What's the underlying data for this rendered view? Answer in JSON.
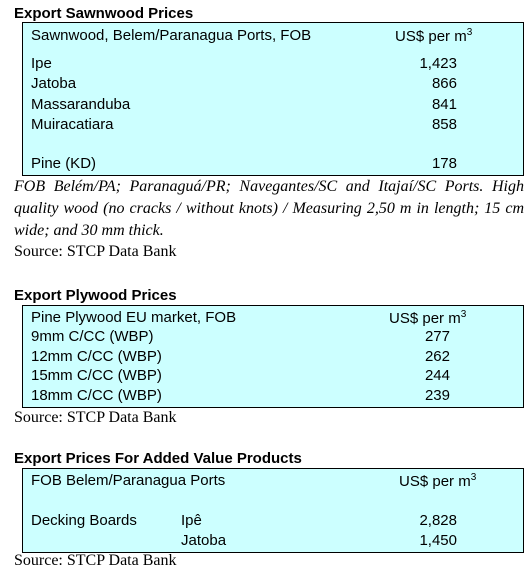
{
  "sawnwood": {
    "title": "Export Sawnwood Prices",
    "header": "Sawnwood, Belem/Paranagua Ports, FOB",
    "unit": "US$ per m",
    "unit_sup": "3",
    "rows": [
      [
        "Ipe",
        "1,423"
      ],
      [
        "Jatoba",
        "866"
      ],
      [
        "Massaranduba",
        "841"
      ],
      [
        "Muiracatiara",
        "858"
      ],
      [
        "Pine (KD)",
        "178"
      ]
    ],
    "note": "FOB Belém/PA; Paranaguá/PR; Navegantes/SC and Itajaí/SC Ports. High quality wood (no cracks / without knots) / Measuring 2,50 m in length; 15 cm wide; and 30 mm thick.",
    "source": "Source: STCP Data Bank"
  },
  "plywood": {
    "title": "Export Plywood Prices",
    "header": "Pine Plywood EU market, FOB",
    "unit": "US$ per m",
    "unit_sup": "3",
    "rows": [
      [
        "9mm C/CC (WBP)",
        "277"
      ],
      [
        "12mm C/CC (WBP)",
        "262"
      ],
      [
        "15mm C/CC (WBP)",
        "244"
      ],
      [
        "18mm C/CC (WBP)",
        "239"
      ]
    ],
    "source": "Source: STCP Data Bank"
  },
  "added_value": {
    "title": "Export Prices For Added Value Products",
    "header": "FOB Belem/Paranagua Ports",
    "unit": "US$ per m",
    "unit_sup": "3",
    "group": "Decking Boards",
    "rows": [
      [
        "Ipê",
        "2,828"
      ],
      [
        "Jatoba",
        "1,450"
      ]
    ],
    "source": "Source: STCP Data Bank"
  }
}
